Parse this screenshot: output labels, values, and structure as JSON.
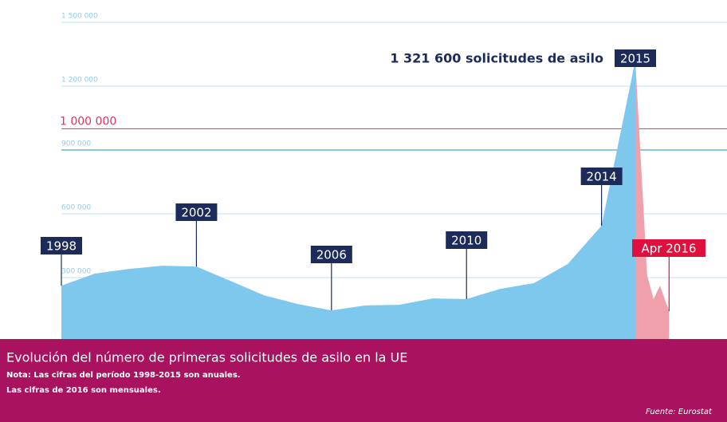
{
  "chart_data": {
    "type": "area",
    "title": "Evolución del número de primeras solicitudes de asilo en la UE",
    "notes": [
      "Nota: Las cifras del período 1998-2015 son anuales.",
      "Las cifras de 2016 son mensuales."
    ],
    "source": "Fuente: Eurostat",
    "annotation": "1 321 600 solicitudes de asilo",
    "ylim": [
      0,
      1500000
    ],
    "yticks": [
      {
        "value": 300000,
        "label": "300 000"
      },
      {
        "value": 600000,
        "label": "600 000"
      },
      {
        "value": 900000,
        "label": "900 000"
      },
      {
        "value": 1200000,
        "label": "1 200 000"
      },
      {
        "value": 1500000,
        "label": "1 500 000"
      }
    ],
    "grid": true,
    "reference": {
      "value": 1000000,
      "label": "1 000 000",
      "color": "#e0325a"
    },
    "series": [
      {
        "color": "#7ec8ee",
        "x": [
          1998,
          1999,
          2000,
          2001,
          2002,
          2003,
          2004,
          2005,
          2006,
          2007,
          2008,
          2009,
          2010,
          2011,
          2012,
          2013,
          2014,
          2015
        ],
        "values": [
          262000,
          319000,
          341000,
          356000,
          352000,
          285000,
          217000,
          176000,
          146000,
          169000,
          172000,
          202000,
          199000,
          247000,
          274000,
          364000,
          544000,
          1321600
        ]
      },
      {
        "color": "#f0a0aa",
        "x": [
          2015,
          2015.35,
          2015.54,
          2015.73,
          2016.0
        ],
        "values": [
          1321600,
          311000,
          199000,
          262000,
          142000
        ],
        "label": "Apr 2016",
        "label_color": "#e0103e"
      }
    ]
  }
}
